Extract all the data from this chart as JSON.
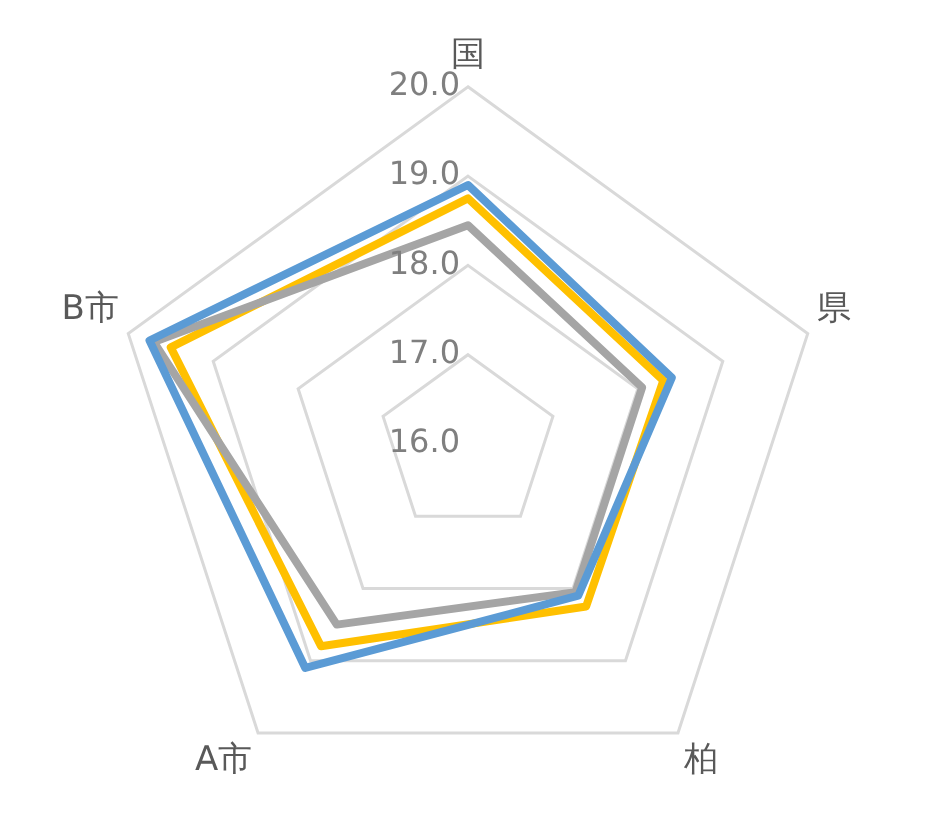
{
  "chart_data": {
    "type": "radar",
    "categories": [
      "国",
      "県",
      "柏",
      "A市",
      "B市"
    ],
    "series": [
      {
        "color": "#5b9bd5",
        "values": [
          18.9,
          18.4,
          18.1,
          19.1,
          19.75
        ]
      },
      {
        "color": "#a5a5a5",
        "values": [
          18.45,
          18.05,
          18.05,
          18.5,
          19.7
        ]
      },
      {
        "color": "#ffc000",
        "values": [
          18.75,
          18.3,
          18.25,
          18.8,
          19.5
        ]
      }
    ],
    "ylim": [
      16,
      20
    ],
    "yticks": [
      {
        "value": 16,
        "label": "16.0"
      },
      {
        "value": 17,
        "label": "17.0"
      },
      {
        "value": 18,
        "label": "18.0"
      },
      {
        "value": 19,
        "label": "19.0"
      },
      {
        "value": 20,
        "label": "20.0"
      }
    ],
    "grid": true,
    "marker": "none",
    "line_style": "solid",
    "legend": false
  }
}
